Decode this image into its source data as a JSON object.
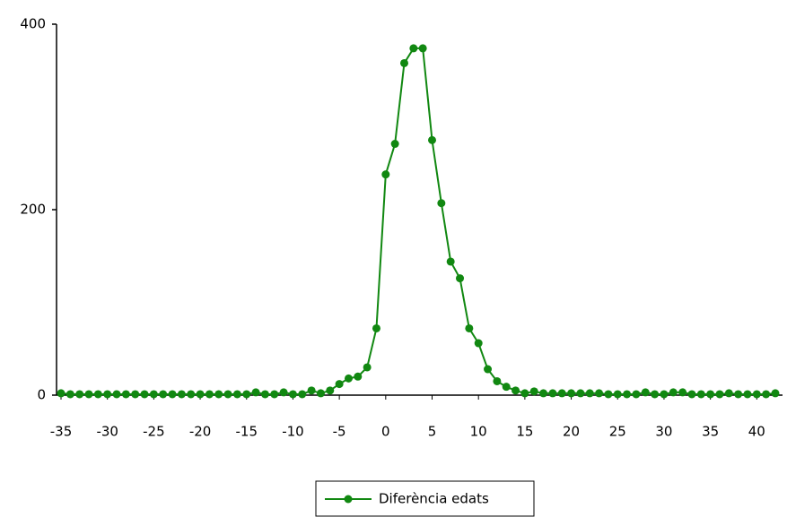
{
  "chart_data": {
    "type": "line",
    "x": [
      -35,
      -34,
      -33,
      -32,
      -31,
      -30,
      -29,
      -28,
      -27,
      -26,
      -25,
      -24,
      -23,
      -22,
      -21,
      -20,
      -19,
      -18,
      -17,
      -16,
      -15,
      -14,
      -13,
      -12,
      -11,
      -10,
      -9,
      -8,
      -7,
      -6,
      -5,
      -4,
      -3,
      -2,
      -1,
      0,
      1,
      2,
      3,
      4,
      5,
      6,
      7,
      8,
      9,
      10,
      11,
      12,
      13,
      14,
      15,
      16,
      17,
      18,
      19,
      20,
      21,
      22,
      23,
      24,
      25,
      26,
      27,
      28,
      29,
      30,
      31,
      32,
      33,
      34,
      35,
      36,
      37,
      38,
      39,
      40,
      41,
      42
    ],
    "series": [
      {
        "name": "Diferència edats",
        "color": "#118811",
        "values": [
          2,
          1,
          1,
          1,
          1,
          1,
          1,
          1,
          1,
          1,
          1,
          1,
          1,
          1,
          1,
          1,
          1,
          1,
          1,
          1,
          1,
          3,
          1,
          1,
          3,
          1,
          1,
          5,
          2,
          5,
          12,
          18,
          20,
          30,
          72,
          238,
          271,
          358,
          374,
          374,
          275,
          207,
          144,
          126,
          72,
          56,
          28,
          15,
          9,
          5,
          2,
          4,
          2,
          2,
          2,
          2,
          2,
          2,
          2,
          1,
          1,
          1,
          1,
          3,
          1,
          1,
          3,
          3,
          1,
          1,
          1,
          1,
          2,
          1,
          1,
          1,
          1,
          2
        ]
      }
    ],
    "xlim": [
      -35,
      42
    ],
    "xticks": [
      -35,
      -30,
      -25,
      -20,
      -15,
      -10,
      -5,
      0,
      5,
      10,
      15,
      20,
      25,
      30,
      35,
      40
    ],
    "ylim": [
      0,
      400
    ],
    "yticks": [
      0,
      200,
      400
    ],
    "grid": false,
    "legend": "bottom"
  }
}
